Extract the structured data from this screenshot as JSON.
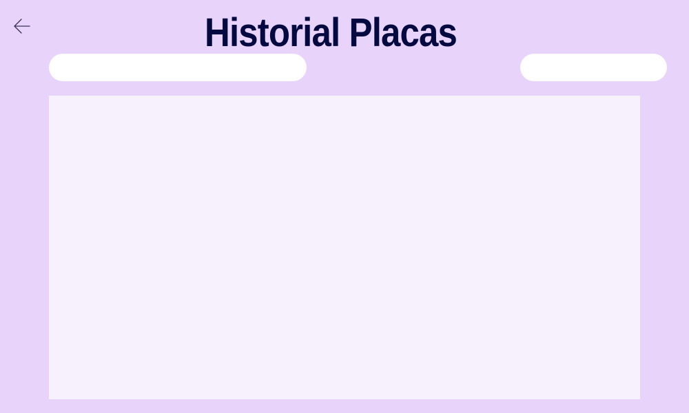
{
  "header": {
    "title": "Historial Placas",
    "title_color": "#040a40",
    "back_icon": "arrow-left-icon"
  },
  "colors": {
    "background": "#e8d3fb",
    "panel": "#f7f1fe",
    "pill": "#ffffff",
    "icon": "#3a2f55"
  },
  "search": {
    "value": "",
    "placeholder": ""
  },
  "filter": {
    "label": ""
  },
  "history": {
    "items": []
  }
}
